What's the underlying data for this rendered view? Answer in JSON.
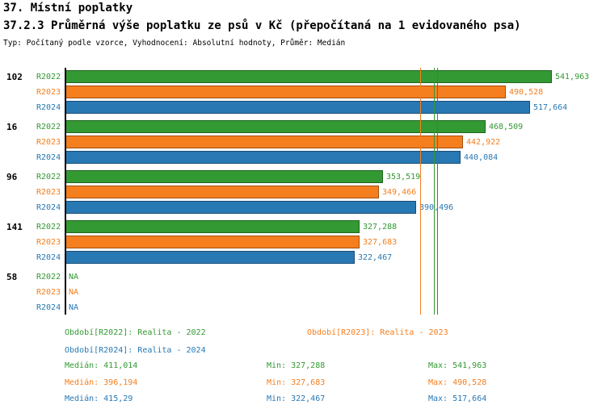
{
  "title": "37. Místní poplatky",
  "subtitle": "37.2.3 Průměrná výše poplatku ze psů v Kč (přepočítaná na 1 evidovaného psa)",
  "meta": "Typ: Počítaný podle vzorce, Vyhodnocení: Absolutní hodnoty, Průměr: Medián",
  "colors": {
    "r2022": "#339933",
    "r2023": "#f57e1e",
    "r2024": "#2878b4",
    "axis": "#000000"
  },
  "chart_data": {
    "type": "bar",
    "orientation": "horizontal",
    "unit": "Kč",
    "x_max": 541.963,
    "series_labels": [
      "R2022",
      "R2023",
      "R2024"
    ],
    "groups": [
      {
        "label": "102",
        "values": [
          541.963,
          490.528,
          517.664
        ],
        "display": [
          "541,963",
          "490,528",
          "517,664"
        ]
      },
      {
        "label": "16",
        "values": [
          468.509,
          442.922,
          440.084
        ],
        "display": [
          "468,509",
          "442,922",
          "440,084"
        ]
      },
      {
        "label": "96",
        "values": [
          353.519,
          349.466,
          390.496
        ],
        "display": [
          "353,519",
          "349,466",
          "390,496"
        ]
      },
      {
        "label": "141",
        "values": [
          327.288,
          327.683,
          322.467
        ],
        "display": [
          "327,288",
          "327,683",
          "322,467"
        ]
      },
      {
        "label": "58",
        "values": [
          null,
          null,
          null
        ],
        "display": [
          "NA",
          "NA",
          "NA"
        ]
      }
    ],
    "median_lines": [
      411.014,
      396.194,
      415.29
    ],
    "legend": [
      {
        "label": "Období[R2022]: Realita - 2022"
      },
      {
        "label": "Období[R2023]: Realita - 2023"
      },
      {
        "label": "Období[R2024]: Realita - 2024"
      }
    ],
    "stats": [
      {
        "median": "Medián: 411,014",
        "min": "Min: 327,288",
        "max": "Max: 541,963"
      },
      {
        "median": "Medián: 396,194",
        "min": "Min: 327,683",
        "max": "Max: 490,528"
      },
      {
        "median": "Medián: 415,29",
        "min": "Min: 322,467",
        "max": "Max: 517,664"
      }
    ]
  }
}
